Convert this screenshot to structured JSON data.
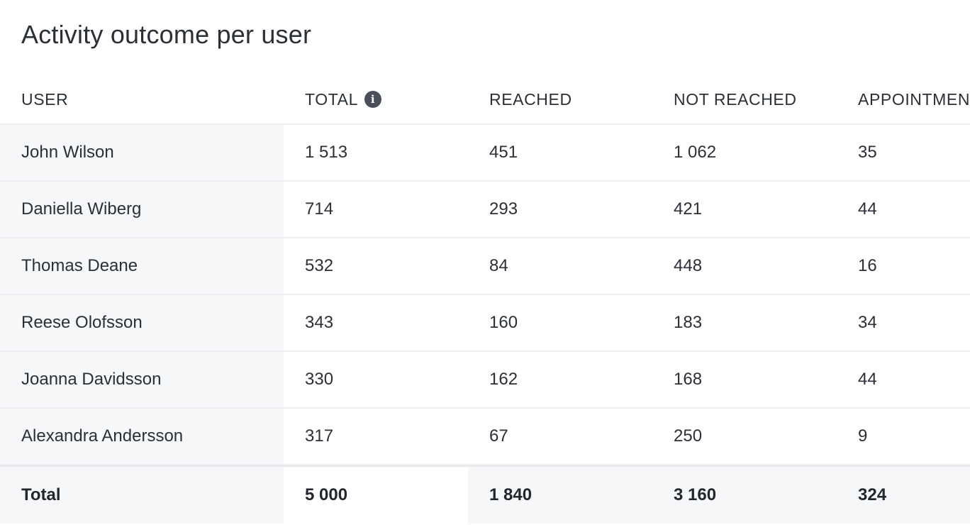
{
  "title": "Activity outcome per user",
  "columns": {
    "user": "USER",
    "total": "TOTAL",
    "total_info_icon": "info-icon",
    "reached": "REACHED",
    "not_reached": "NOT REACHED",
    "appointments": "APPOINTMEN"
  },
  "rows": [
    {
      "user": "John Wilson",
      "total": "1 513",
      "reached": "451",
      "not_reached": "1 062",
      "appointments": "35"
    },
    {
      "user": "Daniella Wiberg",
      "total": "714",
      "reached": "293",
      "not_reached": "421",
      "appointments": "44"
    },
    {
      "user": "Thomas Deane",
      "total": "532",
      "reached": "84",
      "not_reached": "448",
      "appointments": "16"
    },
    {
      "user": "Reese Olofsson",
      "total": "343",
      "reached": "160",
      "not_reached": "183",
      "appointments": "34"
    },
    {
      "user": "Joanna Davidsson",
      "total": "330",
      "reached": "162",
      "not_reached": "168",
      "appointments": "44"
    },
    {
      "user": "Alexandra Andersson",
      "total": "317",
      "reached": "67",
      "not_reached": "250",
      "appointments": "9"
    }
  ],
  "totals": {
    "label": "Total",
    "total": "5 000",
    "reached": "1 840",
    "not_reached": "3 160",
    "appointments": "324"
  },
  "colors": {
    "text": "#2b2f38",
    "row_divider": "#ebedf0",
    "sticky_column_bg": "#f6f7f9",
    "info_icon_bg": "#4a4f5a"
  }
}
